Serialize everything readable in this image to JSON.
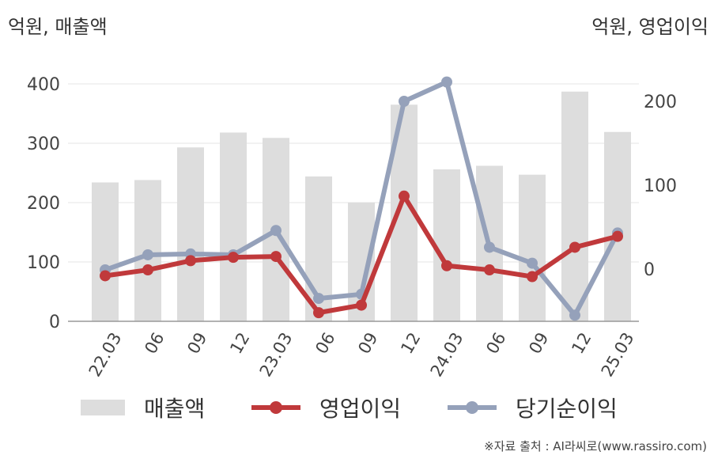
{
  "chart_data": {
    "type": "bar+line",
    "left_axis_label": "억원, 매출액",
    "right_axis_label": "억원, 영업이익",
    "categories": [
      "22.03",
      "06",
      "09",
      "12",
      "23.03",
      "06",
      "09",
      "12",
      "24.03",
      "06",
      "09",
      "12",
      "25.03"
    ],
    "left_axis": {
      "ylim": [
        0,
        400
      ],
      "ticks": [
        0,
        100,
        200,
        300,
        400
      ]
    },
    "right_axis": {
      "ticks": [
        0,
        100,
        200
      ]
    },
    "series": [
      {
        "name": "매출액",
        "kind": "bar",
        "axis": "left",
        "color": "#dddddd",
        "values": [
          234,
          238,
          293,
          318,
          309,
          244,
          200,
          365,
          256,
          262,
          247,
          387,
          319
        ]
      },
      {
        "name": "영업이익",
        "kind": "line",
        "axis": "right",
        "color": "#c0393b",
        "values": [
          -8,
          -1,
          10,
          14,
          15,
          -52,
          -43,
          87,
          4,
          -1,
          -9,
          26,
          39
        ]
      },
      {
        "name": "당기순이익",
        "kind": "line",
        "axis": "right",
        "color": "#95a1ba",
        "values": [
          -1,
          17,
          18,
          17,
          46,
          -35,
          -30,
          200,
          223,
          26,
          7,
          -55,
          43
        ]
      }
    ],
    "grid": true,
    "legend_position": "bottom"
  },
  "source": "※자료 출처 : AI라씨로(www.rassiro.com)"
}
